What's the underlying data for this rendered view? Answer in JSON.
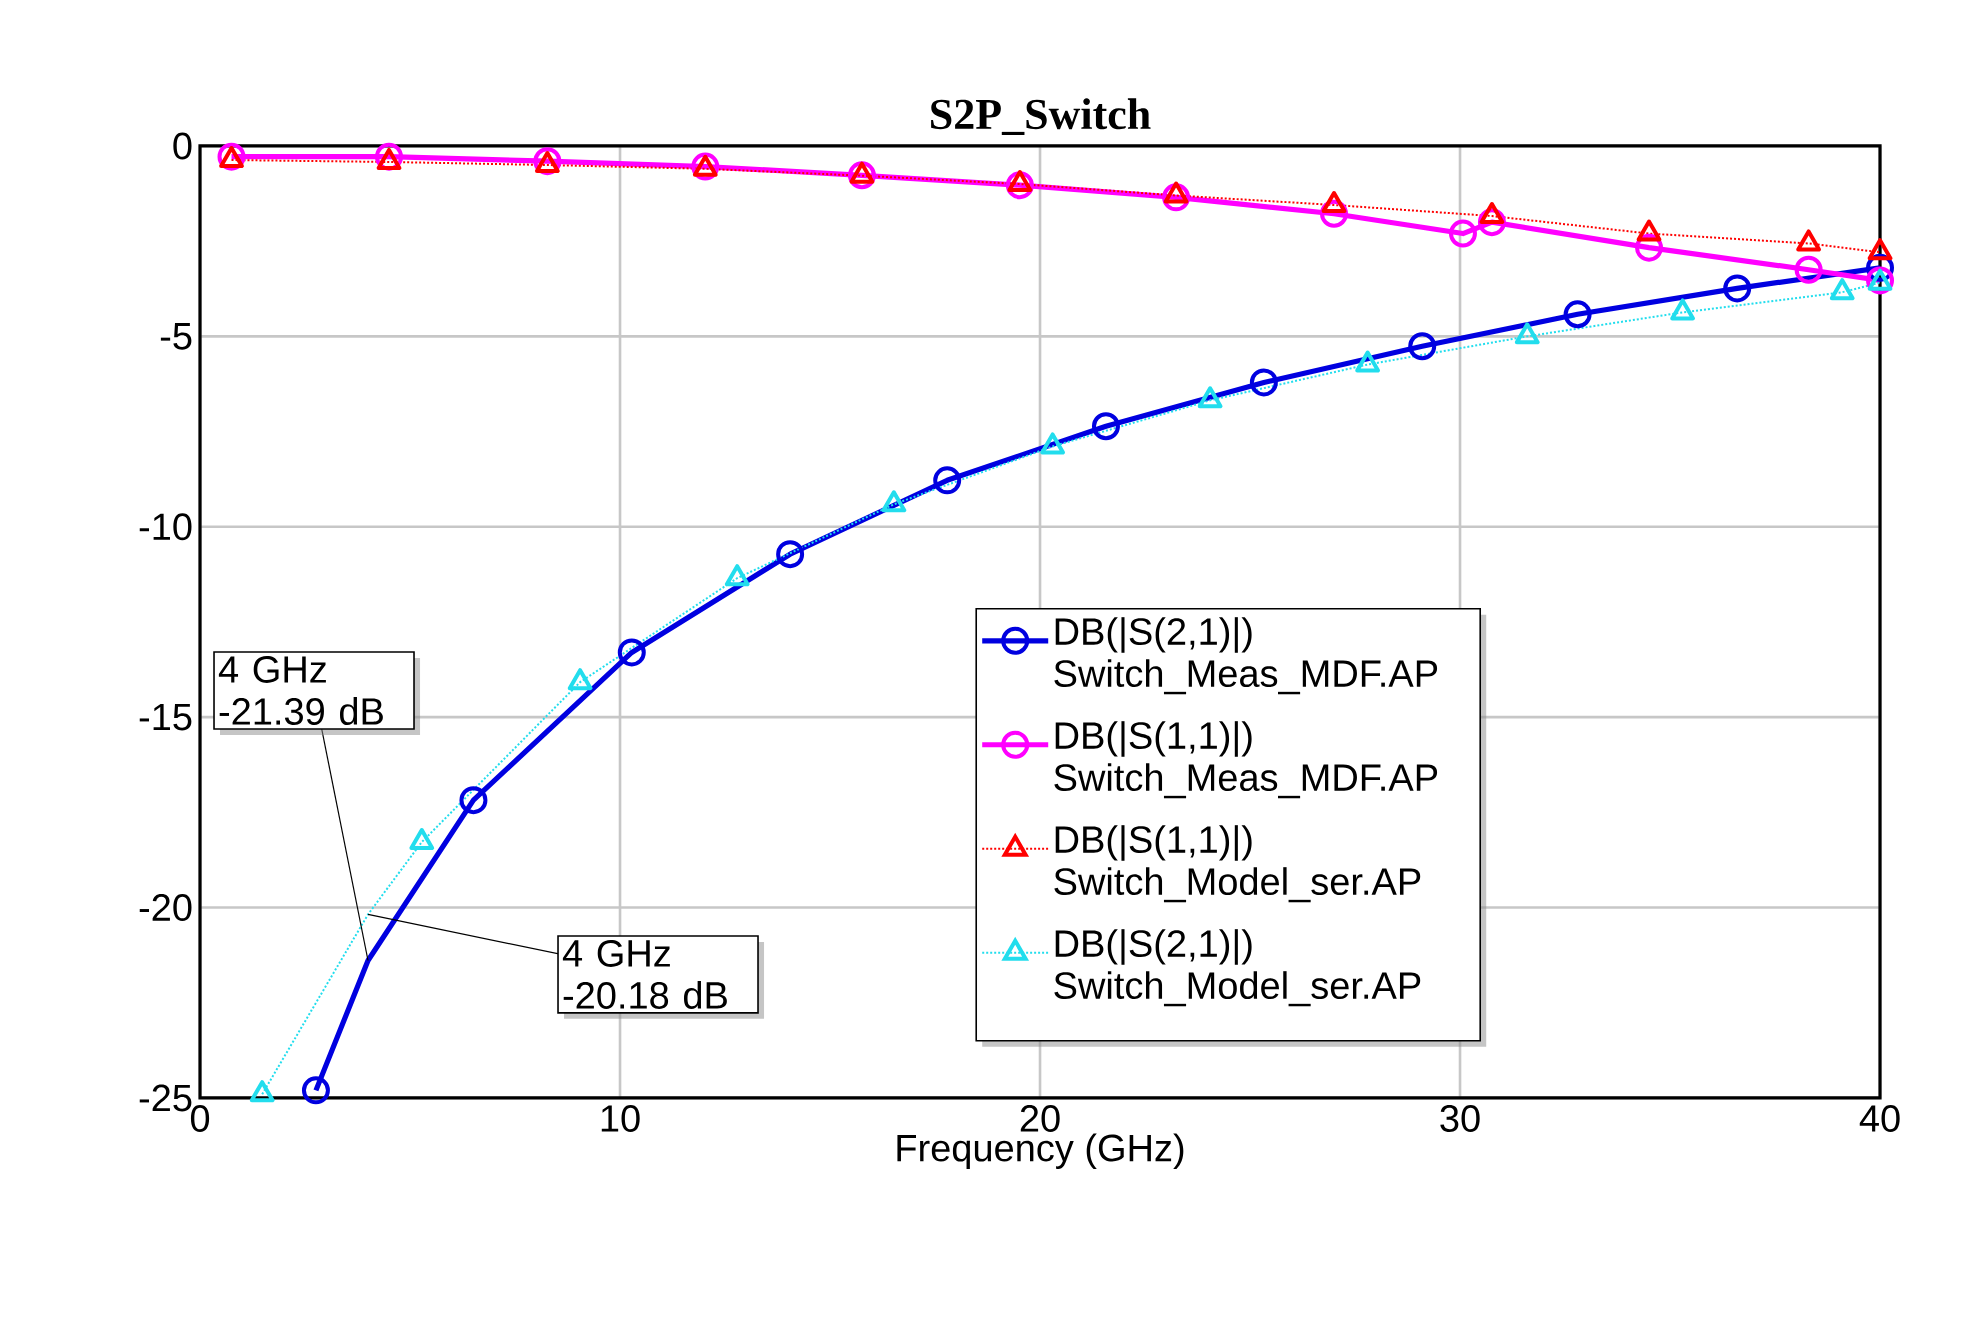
{
  "chart_data": {
    "type": "line",
    "title": "S2P_Switch",
    "xlabel": "Frequency (GHz)",
    "xlim": [
      0,
      40
    ],
    "ylim": [
      -25,
      0
    ],
    "xticks": [
      0,
      10,
      20,
      30,
      40
    ],
    "yticks": [
      -25,
      -20,
      -15,
      -10,
      -5,
      0
    ],
    "grid": true,
    "legend": "bottom right",
    "series": [
      {
        "name": "DB(|S(2,1)|) Switch_Meas_MDF.AP",
        "color": "#0000e0",
        "marker": "circle",
        "line_style": "solid",
        "x": [
          2.76,
          4,
          6.51,
          10.28,
          14.05,
          17.79,
          21.57,
          25.33,
          29.1,
          32.8,
          36.6,
          40
        ],
        "values": [
          -24.8,
          -21.39,
          -17.18,
          -13.3,
          -10.72,
          -8.78,
          -7.36,
          -6.21,
          -5.26,
          -4.42,
          -3.74,
          -3.2
        ]
      },
      {
        "name": "DB(|S(1,1)|) Switch_Meas_MDF.AP",
        "color": "#ff00ff",
        "marker": "circle",
        "line_style": "solid",
        "x": [
          0.75,
          4.5,
          8.27,
          12.03,
          15.76,
          19.52,
          23.24,
          27.0,
          30.07,
          30.76,
          34.5,
          38.3,
          40
        ],
        "values": [
          -0.28,
          -0.28,
          -0.4,
          -0.54,
          -0.77,
          -1.03,
          -1.35,
          -1.78,
          -2.3,
          -2.0,
          -2.67,
          -3.25,
          -3.53
        ]
      },
      {
        "name": "DB(|S(1,1)|) Switch_Model_ser.AP",
        "color": "#ff0000",
        "marker": "triangle",
        "line_style": "dotted",
        "x": [
          0.75,
          4.5,
          8.27,
          12.03,
          15.76,
          19.52,
          23.24,
          27.0,
          30.76,
          34.5,
          38.3,
          40
        ],
        "values": [
          -0.37,
          -0.42,
          -0.5,
          -0.6,
          -0.78,
          -1.0,
          -1.3,
          -1.55,
          -1.84,
          -2.3,
          -2.56,
          -2.79
        ]
      },
      {
        "name": "DB(|S(2,1)|) Switch_Model_ser.AP",
        "color": "#22dded",
        "marker": "triangle",
        "line_style": "dotted",
        "x": [
          1.48,
          4,
          5.28,
          9.05,
          12.79,
          16.52,
          20.3,
          24.05,
          27.8,
          31.6,
          35.3,
          39.1,
          40
        ],
        "values": [
          -24.9,
          -20.18,
          -18.28,
          -14.08,
          -11.35,
          -9.41,
          -7.89,
          -6.68,
          -5.74,
          -5.0,
          -4.37,
          -3.84,
          -3.59
        ]
      }
    ],
    "annotations": [
      {
        "text": "4 GHz -21.39 dB",
        "x": 4,
        "y": -21.39
      },
      {
        "text": "4 GHz -20.18 dB",
        "x": 4,
        "y": -20.18
      }
    ]
  }
}
